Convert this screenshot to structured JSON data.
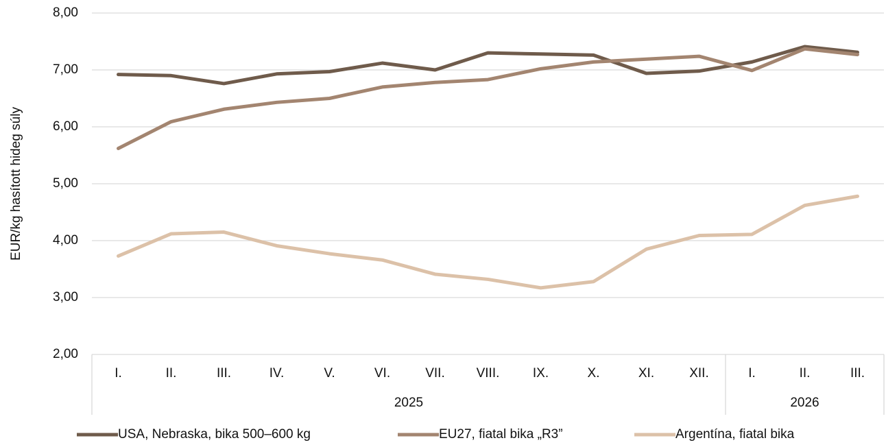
{
  "chart_data": {
    "type": "line",
    "ylabel": "EUR/kg hasított hideg súly",
    "categories": [
      "I.",
      "II.",
      "III.",
      "IV.",
      "V.",
      "VI.",
      "VII.",
      "VIII.",
      "IX.",
      "X.",
      "XI.",
      "XII.",
      "I.",
      "II.",
      "III."
    ],
    "category_groups": [
      {
        "label": "2025",
        "size": 12
      },
      {
        "label": "2026",
        "size": 3
      }
    ],
    "series": [
      {
        "name": "USA, Nebraska, bika 500–600 kg",
        "color": "#6f5b4b",
        "values": [
          6.92,
          6.9,
          6.76,
          6.93,
          6.97,
          7.12,
          7.0,
          7.3,
          7.28,
          7.26,
          6.94,
          6.98,
          7.14,
          7.41,
          7.31
        ]
      },
      {
        "name": "EU27, fiatal bika „R3”",
        "color": "#a38570",
        "values": [
          5.62,
          6.09,
          6.31,
          6.43,
          6.5,
          6.7,
          6.78,
          6.83,
          7.02,
          7.14,
          7.19,
          7.24,
          6.99,
          7.37,
          7.27
        ]
      },
      {
        "name": "Argentína, fiatal bika",
        "color": "#dcc1a8",
        "values": [
          3.73,
          4.12,
          4.15,
          3.91,
          3.77,
          3.66,
          3.41,
          3.32,
          3.17,
          3.28,
          3.85,
          4.09,
          4.11,
          4.62,
          4.78
        ]
      }
    ],
    "ylim": [
      2,
      8
    ],
    "yticks": [
      {
        "value": 2,
        "label": "2,00"
      },
      {
        "value": 3,
        "label": "3,00"
      },
      {
        "value": 4,
        "label": "4,00"
      },
      {
        "value": 5,
        "label": "5,00"
      },
      {
        "value": 6,
        "label": "6,00"
      },
      {
        "value": 7,
        "label": "7,00"
      },
      {
        "value": 8,
        "label": "8,00"
      }
    ],
    "grid": true,
    "legend": "bottom"
  }
}
